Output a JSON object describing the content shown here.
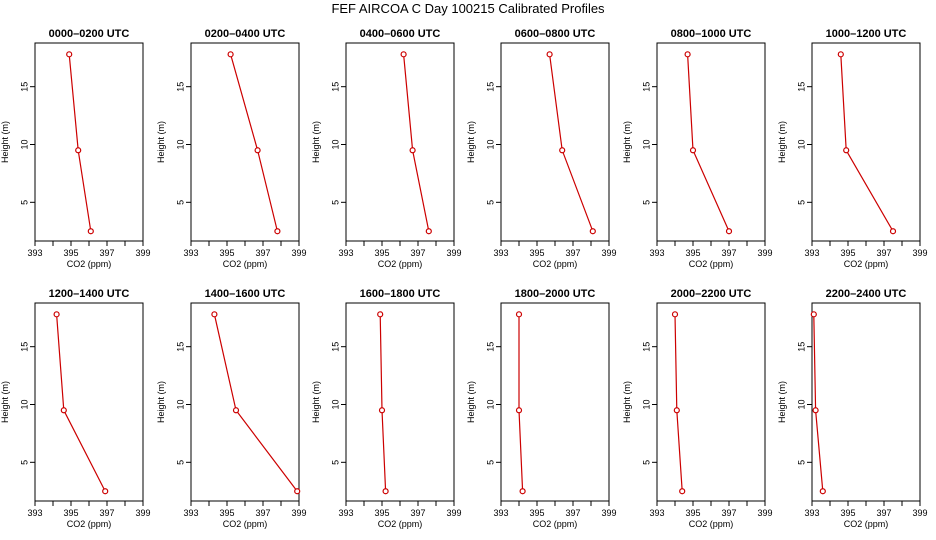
{
  "title": "FEF AIRCOA C  Day 100215  Calibrated Profiles",
  "chart_data": {
    "type": "line",
    "xlabel": "CO2 (ppm)",
    "ylabel": "Height (m)",
    "xlim": [
      393,
      399
    ],
    "ylim": [
      2,
      18
    ],
    "xticks": [
      "393",
      "395",
      "397",
      "399"
    ],
    "yticks": [
      "5",
      "10",
      "15"
    ],
    "grid": false,
    "series_color": "#cc0000",
    "heights": [
      17.8,
      9.5,
      2.5
    ],
    "panels": [
      {
        "title": "0000–0200 UTC",
        "co2": [
          394.9,
          395.4,
          396.1
        ]
      },
      {
        "title": "0200–0400 UTC",
        "co2": [
          395.2,
          396.7,
          397.8
        ]
      },
      {
        "title": "0400–0600 UTC",
        "co2": [
          396.2,
          396.7,
          397.6
        ]
      },
      {
        "title": "0600–0800 UTC",
        "co2": [
          395.7,
          396.4,
          398.1
        ]
      },
      {
        "title": "0800–1000 UTC",
        "co2": [
          394.7,
          395.0,
          397.0
        ]
      },
      {
        "title": "1000–1200 UTC",
        "co2": [
          394.6,
          394.9,
          397.5
        ]
      },
      {
        "title": "1200–1400 UTC",
        "co2": [
          394.2,
          394.6,
          396.9
        ]
      },
      {
        "title": "1400–1600 UTC",
        "co2": [
          394.3,
          395.5,
          398.9
        ]
      },
      {
        "title": "1600–1800 UTC",
        "co2": [
          394.9,
          395.0,
          395.2
        ]
      },
      {
        "title": "1800–2000 UTC",
        "co2": [
          394.0,
          394.0,
          394.2
        ]
      },
      {
        "title": "2000–2200 UTC",
        "co2": [
          394.0,
          394.1,
          394.4
        ]
      },
      {
        "title": "2200–2400 UTC",
        "co2": [
          393.1,
          393.2,
          393.6
        ]
      }
    ]
  }
}
